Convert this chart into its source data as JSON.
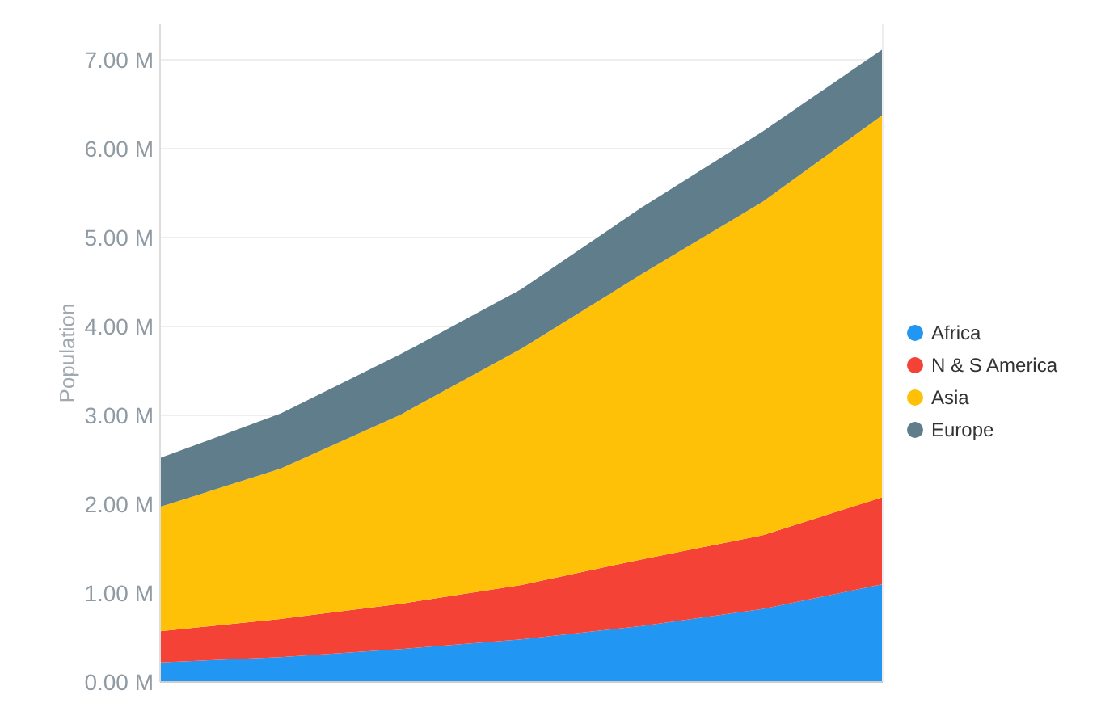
{
  "chart_data": {
    "type": "area",
    "stacked": true,
    "ylabel": "Population",
    "categories": [
      null,
      null,
      null,
      null,
      null,
      null,
      null
    ],
    "ylim": [
      0,
      7.4
    ],
    "yticks": [
      {
        "value": 0,
        "label": "0.00 M"
      },
      {
        "value": 1,
        "label": "1.00 M"
      },
      {
        "value": 2,
        "label": "2.00 M"
      },
      {
        "value": 3,
        "label": "3.00 M"
      },
      {
        "value": 4,
        "label": "4.00 M"
      },
      {
        "value": 5,
        "label": "5.00 M"
      },
      {
        "value": 6,
        "label": "6.00 M"
      },
      {
        "value": 7,
        "label": "7.00 M"
      }
    ],
    "grid": "y",
    "legend": "right",
    "series": [
      {
        "name": "Africa",
        "color": "#2196f3",
        "values": [
          0.22,
          0.28,
          0.37,
          0.48,
          0.63,
          0.82,
          1.1
        ]
      },
      {
        "name": "N & S America",
        "color": "#f44336",
        "values": [
          0.35,
          0.43,
          0.51,
          0.61,
          0.75,
          0.83,
          0.98
        ]
      },
      {
        "name": "Asia",
        "color": "#ffc107",
        "values": [
          1.4,
          1.69,
          2.13,
          2.66,
          3.21,
          3.75,
          4.3
        ]
      },
      {
        "name": "Europe",
        "color": "#607d8b",
        "values": [
          0.55,
          0.62,
          0.68,
          0.67,
          0.75,
          0.79,
          0.74
        ]
      }
    ]
  }
}
